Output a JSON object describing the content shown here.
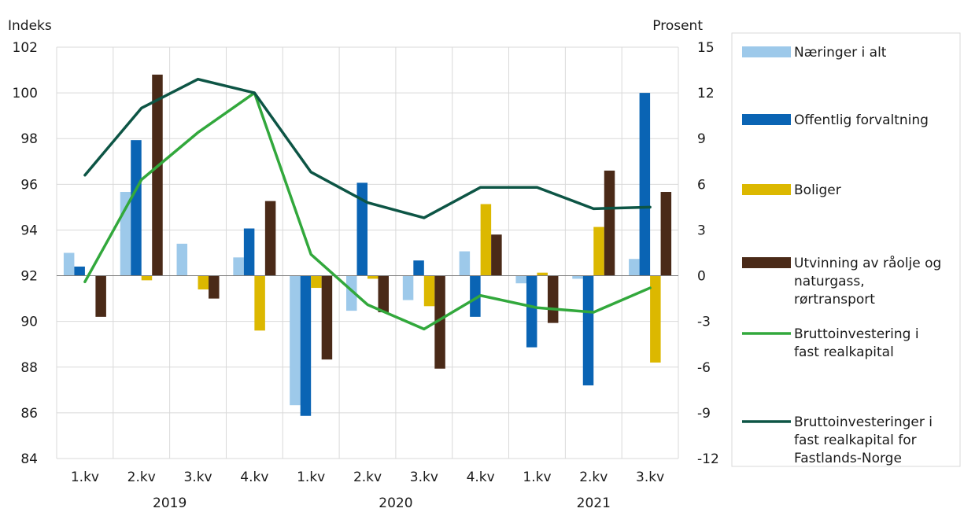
{
  "chart_data": {
    "type": "bar",
    "title": "",
    "left_axis": {
      "label": "Indeks",
      "min": 84,
      "max": 102,
      "step": 2,
      "ticks": [
        "84",
        "86",
        "88",
        "90",
        "92",
        "94",
        "96",
        "98",
        "100",
        "102"
      ]
    },
    "right_axis": {
      "label": "Prosent",
      "min": -12,
      "max": 15,
      "step": 3,
      "ticks": [
        "-12",
        "-9",
        "-6",
        "-3",
        "0",
        "3",
        "6",
        "9",
        "12",
        "15"
      ]
    },
    "categories": [
      "1.kv",
      "2.kv",
      "3.kv",
      "4.kv",
      "1.kv",
      "2.kv",
      "3.kv",
      "4.kv",
      "1.kv",
      "2.kv",
      "3.kv"
    ],
    "years": [
      {
        "label": "2019",
        "start": 0,
        "end": 3
      },
      {
        "label": "2020",
        "start": 4,
        "end": 7
      },
      {
        "label": "2021",
        "start": 8,
        "end": 10
      }
    ],
    "grid": true,
    "legend_position": "right",
    "bar_series": [
      {
        "name": "Næringer i alt",
        "color": "#9dc9ea",
        "axis": "right",
        "values": [
          1.5,
          5.5,
          2.1,
          1.2,
          -8.5,
          -2.3,
          -1.6,
          1.6,
          -0.5,
          -0.2,
          1.1
        ]
      },
      {
        "name": "Offentlig forvaltning",
        "color": "#0a64b4",
        "axis": "right",
        "values": [
          0.6,
          8.9,
          0,
          3.1,
          -9.2,
          6.1,
          1.0,
          -2.7,
          -4.7,
          -7.2,
          12.0
        ]
      },
      {
        "name": "Boliger",
        "color": "#dcb800",
        "axis": "right",
        "values": [
          0,
          -0.3,
          -0.9,
          -3.6,
          -0.8,
          -0.2,
          -2.0,
          4.7,
          0.2,
          3.2,
          -5.7
        ]
      },
      {
        "name": "Utvinning av råolje og naturgass, rørtransport",
        "color": "#4a2a18",
        "axis": "right",
        "values": [
          -2.7,
          13.2,
          -1.5,
          4.9,
          -5.5,
          -2.4,
          -6.1,
          2.7,
          -3.1,
          6.9,
          5.5
        ]
      }
    ],
    "line_series": [
      {
        "name": "Bruttoinvestering i fast realkapital",
        "color": "#32a83c",
        "axis": "right",
        "values": [
          -0.4,
          6.3,
          9.4,
          12.0,
          1.4,
          -1.9,
          -3.5,
          -1.3,
          -2.1,
          -2.4,
          -0.8
        ]
      },
      {
        "name": "Bruttoinvesteringer i fast realkapital for Fastlands-Norge",
        "color": "#0d5545",
        "axis": "right",
        "values": [
          6.6,
          11.0,
          12.9,
          12.0,
          6.8,
          4.8,
          3.8,
          5.8,
          5.8,
          4.4,
          4.5
        ]
      }
    ]
  },
  "legend": [
    {
      "lines": [
        "Næringer i alt"
      ],
      "color": "#9dc9ea",
      "kind": "bar"
    },
    {
      "lines": [
        "Offentlig forvaltning"
      ],
      "color": "#0a64b4",
      "kind": "bar"
    },
    {
      "lines": [
        "Boliger"
      ],
      "color": "#dcb800",
      "kind": "bar"
    },
    {
      "lines": [
        "Utvinning av råolje og",
        "naturgass,",
        "rørtransport"
      ],
      "color": "#4a2a18",
      "kind": "bar"
    },
    {
      "lines": [
        "Bruttoinvestering i",
        "fast realkapital"
      ],
      "color": "#32a83c",
      "kind": "line"
    },
    {
      "lines": [
        "Bruttoinvesteringer i",
        "fast realkapital for",
        "Fastlands-Norge"
      ],
      "color": "#0d5545",
      "kind": "line"
    }
  ]
}
